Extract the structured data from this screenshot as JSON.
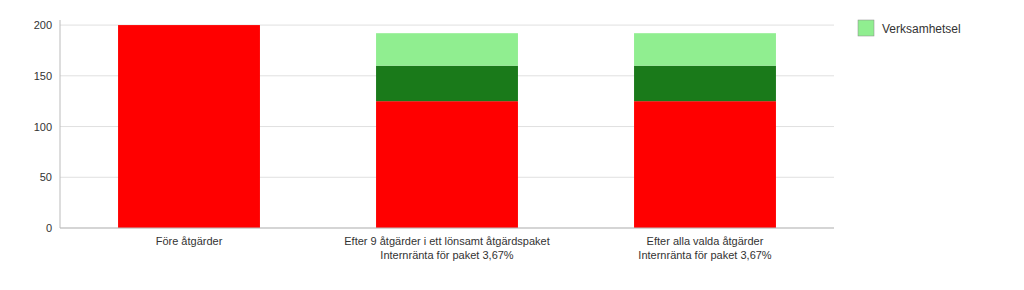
{
  "chart_data": {
    "type": "bar",
    "stacked": true,
    "categories": [
      "Före åtgärder",
      "Efter 9 åtgärder i ett lönsamt åtgärdspaket\nInternränta för paket 3,67%",
      "Efter alla valda åtgärder\nInternränta för paket 3,67%"
    ],
    "series": [
      {
        "color": "#ff0000",
        "values": [
          200,
          125,
          125
        ]
      },
      {
        "color": "#1a7a1a",
        "values": [
          0,
          35,
          35
        ]
      },
      {
        "name": "Verksamhetsel",
        "color": "#90ee90",
        "values": [
          0,
          32,
          32
        ]
      }
    ],
    "ylim": [
      0,
      205
    ],
    "yticks": [
      0,
      50,
      100,
      150,
      200
    ],
    "grid": true,
    "legend": "right"
  }
}
